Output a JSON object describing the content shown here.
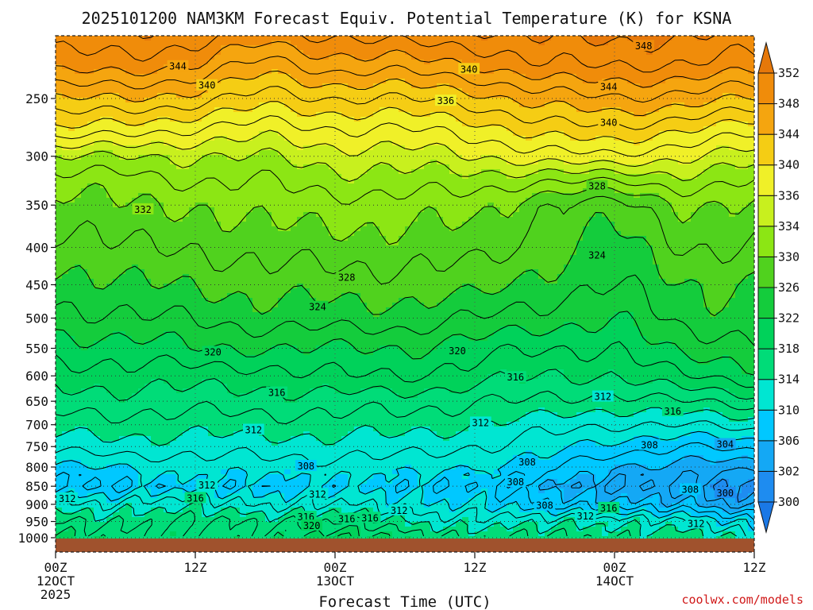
{
  "chart_data": {
    "type": "heatmap",
    "title": "2025101200 NAM3KM Forecast Equiv. Potential Temperature (K) for KSNA",
    "xlabel": "Forecast Time (UTC)",
    "ylabel": "",
    "x_ticks": [
      {
        "hours": 0,
        "label": "00Z",
        "sub": "12OCT",
        "year": "2025"
      },
      {
        "hours": 12,
        "label": "12Z",
        "sub": "",
        "year": ""
      },
      {
        "hours": 24,
        "label": "00Z",
        "sub": "13OCT",
        "year": ""
      },
      {
        "hours": 36,
        "label": "12Z",
        "sub": "",
        "year": ""
      },
      {
        "hours": 48,
        "label": "00Z",
        "sub": "14OCT",
        "year": ""
      },
      {
        "hours": 60,
        "label": "12Z",
        "sub": "",
        "year": ""
      }
    ],
    "xlim": [
      0,
      60
    ],
    "y_ticks": [
      250,
      300,
      350,
      400,
      450,
      500,
      550,
      600,
      650,
      700,
      750,
      800,
      850,
      900,
      950,
      1000
    ],
    "ylim": [
      1000,
      200
    ],
    "colorbar": {
      "levels": [
        300,
        302,
        306,
        310,
        314,
        318,
        322,
        326,
        330,
        334,
        336,
        340,
        344,
        348,
        352
      ],
      "labels": [
        "300",
        "302",
        "306",
        "310",
        "314",
        "318",
        "322",
        "326",
        "330",
        "334",
        "336",
        "340",
        "344",
        "348",
        "352"
      ],
      "colors": [
        "#1a78e6",
        "#1e8cf0",
        "#14a8f5",
        "#00c8ff",
        "#00e6d2",
        "#00dc78",
        "#00d25a",
        "#14cc3c",
        "#50d21e",
        "#8ce614",
        "#c8f01e",
        "#f0f028",
        "#f5cd14",
        "#f5a50f",
        "#f08c0a",
        "#e6780a"
      ]
    },
    "profiles": [
      {
        "hours": 0,
        "theta": [
          352,
          349,
          344,
          340,
          334,
          331,
          329,
          327,
          325,
          323,
          321,
          319,
          317,
          315,
          313,
          310,
          308,
          312,
          316,
          318
        ]
      },
      {
        "hours": 6,
        "theta": [
          352,
          349,
          344,
          339,
          334,
          331,
          330,
          328,
          326,
          324,
          321,
          319,
          317,
          315,
          313,
          310,
          308,
          313,
          316,
          317
        ]
      },
      {
        "hours": 12,
        "theta": [
          352,
          348,
          343,
          338,
          334,
          332,
          330,
          328,
          326,
          324,
          322,
          319,
          317,
          315,
          313,
          311,
          309,
          313,
          316,
          316
        ]
      },
      {
        "hours": 18,
        "theta": [
          350,
          345,
          341,
          337,
          334,
          332,
          331,
          329,
          327,
          325,
          322,
          319,
          317,
          315,
          313,
          311,
          309,
          312,
          316,
          317
        ]
      },
      {
        "hours": 24,
        "theta": [
          351,
          347,
          342,
          338,
          335,
          333,
          331,
          329,
          327,
          325,
          322,
          320,
          317,
          315,
          313,
          311,
          309,
          312,
          316,
          320
        ]
      },
      {
        "hours": 30,
        "theta": [
          352,
          347,
          342,
          338,
          335,
          333,
          331,
          329,
          327,
          325,
          322,
          320,
          317,
          315,
          313,
          311,
          309,
          311,
          314,
          317
        ]
      },
      {
        "hours": 36,
        "theta": [
          352,
          348,
          343,
          339,
          336,
          333,
          331,
          329,
          327,
          324,
          321,
          319,
          316,
          314,
          312,
          310,
          308,
          310,
          313,
          316
        ]
      },
      {
        "hours": 42,
        "theta": [
          353,
          350,
          345,
          341,
          337,
          332,
          328,
          327,
          325,
          323,
          320,
          318,
          316,
          313,
          311,
          309,
          306,
          308,
          313,
          316
        ]
      },
      {
        "hours": 48,
        "theta": [
          353,
          350,
          346,
          342,
          338,
          332,
          327,
          325,
          324,
          322,
          320,
          318,
          315,
          312,
          309,
          306,
          304,
          307,
          314,
          316
        ]
      },
      {
        "hours": 54,
        "theta": [
          353,
          350,
          345,
          340,
          336,
          333,
          330,
          328,
          326,
          325,
          323,
          320,
          316,
          312,
          308,
          305,
          303,
          306,
          312,
          315
        ]
      },
      {
        "hours": 60,
        "theta": [
          352,
          349,
          344,
          339,
          335,
          332,
          330,
          328,
          326,
          325,
          323,
          321,
          317,
          313,
          309,
          305,
          302,
          303,
          309,
          313
        ]
      }
    ],
    "profile_levels": [
      200,
      225,
      250,
      275,
      300,
      325,
      350,
      400,
      450,
      500,
      550,
      600,
      650,
      700,
      750,
      800,
      850,
      900,
      950,
      1000
    ],
    "contour_interval": 2,
    "contour_labels": [
      {
        "hours": 10.5,
        "p": 226,
        "text": "344"
      },
      {
        "hours": 13.0,
        "p": 240,
        "text": "340"
      },
      {
        "hours": 35.5,
        "p": 228,
        "text": "340"
      },
      {
        "hours": 33.5,
        "p": 252,
        "text": "336"
      },
      {
        "hours": 50.5,
        "p": 212,
        "text": "348"
      },
      {
        "hours": 47.5,
        "p": 241,
        "text": "344"
      },
      {
        "hours": 47.5,
        "p": 270,
        "text": "340"
      },
      {
        "hours": 7.5,
        "p": 355,
        "text": "332"
      },
      {
        "hours": 46.5,
        "p": 330,
        "text": "328"
      },
      {
        "hours": 25.0,
        "p": 440,
        "text": "328"
      },
      {
        "hours": 46.5,
        "p": 410,
        "text": "324"
      },
      {
        "hours": 22.5,
        "p": 483,
        "text": "324"
      },
      {
        "hours": 13.5,
        "p": 557,
        "text": "320"
      },
      {
        "hours": 34.5,
        "p": 555,
        "text": "320"
      },
      {
        "hours": 39.5,
        "p": 603,
        "text": "316"
      },
      {
        "hours": 19.0,
        "p": 633,
        "text": "316"
      },
      {
        "hours": 47.0,
        "p": 641,
        "text": "312"
      },
      {
        "hours": 53.0,
        "p": 671,
        "text": "316"
      },
      {
        "hours": 36.5,
        "p": 696,
        "text": "312"
      },
      {
        "hours": 17.0,
        "p": 712,
        "text": "312"
      },
      {
        "hours": 51.0,
        "p": 747,
        "text": "308"
      },
      {
        "hours": 57.5,
        "p": 745,
        "text": "304"
      },
      {
        "hours": 40.5,
        "p": 788,
        "text": "308"
      },
      {
        "hours": 21.5,
        "p": 798,
        "text": "308"
      },
      {
        "hours": 39.5,
        "p": 839,
        "text": "308"
      },
      {
        "hours": 13.0,
        "p": 847,
        "text": "312"
      },
      {
        "hours": 1.0,
        "p": 884,
        "text": "312"
      },
      {
        "hours": 12.0,
        "p": 883,
        "text": "316"
      },
      {
        "hours": 22.5,
        "p": 872,
        "text": "312"
      },
      {
        "hours": 54.5,
        "p": 859,
        "text": "308"
      },
      {
        "hours": 57.5,
        "p": 869,
        "text": "300"
      },
      {
        "hours": 42.0,
        "p": 904,
        "text": "308"
      },
      {
        "hours": 47.5,
        "p": 911,
        "text": "316"
      },
      {
        "hours": 29.5,
        "p": 918,
        "text": "312"
      },
      {
        "hours": 21.5,
        "p": 937,
        "text": "316"
      },
      {
        "hours": 25.0,
        "p": 943,
        "text": "316"
      },
      {
        "hours": 27.0,
        "p": 940,
        "text": "316"
      },
      {
        "hours": 45.5,
        "p": 935,
        "text": "312"
      },
      {
        "hours": 22.0,
        "p": 963,
        "text": "320"
      },
      {
        "hours": 55.0,
        "p": 957,
        "text": "312"
      }
    ]
  },
  "credit": "coolwx.com/models"
}
